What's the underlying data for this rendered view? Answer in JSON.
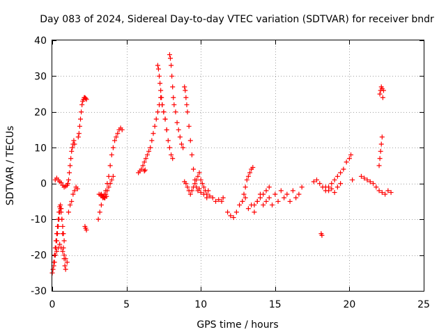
{
  "chart_data": {
    "type": "scatter",
    "title": "Day 083 of 2024, Sidereal Day-to-day VTEC variation (SDTVAR) for receiver bndr",
    "xlabel": "GPS time / hours",
    "ylabel": "SDTVAR / TECUs",
    "xlim": [
      0,
      25
    ],
    "ylim": [
      -30,
      40
    ],
    "xticks": [
      0,
      5,
      10,
      15,
      20,
      25
    ],
    "yticks": [
      -30,
      -20,
      -10,
      0,
      10,
      20,
      30,
      40
    ],
    "xtick_labels": [
      "0",
      "5",
      "10",
      "15",
      "20",
      "25"
    ],
    "ytick_labels": [
      "-30",
      "-20",
      "-10",
      "0",
      "10",
      "20",
      "30",
      "40"
    ],
    "grid": true,
    "marker": "plus",
    "color": "#ff0000",
    "series": [
      {
        "name": "SDTVAR",
        "x": [
          0.0,
          0.05,
          0.1,
          0.15,
          0.2,
          0.25,
          0.3,
          0.35,
          0.4,
          0.45,
          0.5,
          0.55,
          0.6,
          0.65,
          0.7,
          0.75,
          0.8,
          0.85,
          0.9,
          0.1,
          0.15,
          0.2,
          0.25,
          0.3,
          0.35,
          0.4,
          0.45,
          0.5,
          0.55,
          0.6,
          0.65,
          0.7,
          0.75,
          0.8,
          0.2,
          0.3,
          0.4,
          0.5,
          0.6,
          0.7,
          0.8,
          0.9,
          1.0,
          1.05,
          1.1,
          1.15,
          1.2,
          1.25,
          1.3,
          1.35,
          1.4,
          1.45,
          1.5,
          0.2,
          0.3,
          0.4,
          0.5,
          0.6,
          0.7,
          0.8,
          0.9,
          1.0,
          1.1,
          1.2,
          1.3,
          1.4,
          1.5,
          1.6,
          1.7,
          1.75,
          1.8,
          1.85,
          1.9,
          1.95,
          2.0,
          2.05,
          2.1,
          2.15,
          2.2,
          2.25,
          2.3,
          2.2,
          2.25,
          2.3,
          3.1,
          3.2,
          3.3,
          3.4,
          3.5,
          3.6,
          3.7,
          3.8,
          3.9,
          4.0,
          4.1,
          4.2,
          4.3,
          4.4,
          4.5,
          4.6,
          4.7,
          3.3,
          3.4,
          3.5,
          3.6,
          3.7,
          3.8,
          3.9,
          4.0,
          4.1,
          3.15,
          3.25,
          3.35,
          3.45,
          3.55,
          3.65,
          5.8,
          5.9,
          6.0,
          6.1,
          6.2,
          6.3,
          6.4,
          6.5,
          6.6,
          6.7,
          6.8,
          6.9,
          7.0,
          7.1,
          7.2,
          7.3,
          7.4,
          7.5,
          7.6,
          7.7,
          7.8,
          7.9,
          8.0,
          8.1,
          6.2,
          6.25,
          7.1,
          7.15,
          7.2,
          7.25,
          7.3,
          7.35,
          7.4,
          7.5,
          7.6,
          7.7,
          7.9,
          7.95,
          8.0,
          8.05,
          8.1,
          8.15,
          8.2,
          8.3,
          8.4,
          8.5,
          8.6,
          8.7,
          8.8,
          8.9,
          8.95,
          9.0,
          9.05,
          9.1,
          9.2,
          9.3,
          9.4,
          9.5,
          9.6,
          8.9,
          9.0,
          9.1,
          9.2,
          9.3,
          9.4,
          9.5,
          9.6,
          9.7,
          9.8,
          9.9,
          10.0,
          10.1,
          10.2,
          10.3,
          10.4,
          10.5,
          9.7,
          9.8,
          9.9,
          10.0,
          10.2,
          10.4,
          10.6,
          10.8,
          11.0,
          11.2,
          11.4,
          11.5,
          11.8,
          12.0,
          12.2,
          12.4,
          12.6,
          12.8,
          13.0,
          13.2,
          13.4,
          13.6,
          13.8,
          14.0,
          14.2,
          14.4,
          14.6,
          14.8,
          15.0,
          15.2,
          15.4,
          15.6,
          15.8,
          16.0,
          16.2,
          16.4,
          16.6,
          16.8,
          12.8,
          12.9,
          13.0,
          13.1,
          13.2,
          13.3,
          13.4,
          13.5,
          13.6,
          13.8,
          14.0,
          14.2,
          14.4,
          14.6,
          18.1,
          18.15,
          17.6,
          17.8,
          18.0,
          18.2,
          18.4,
          18.6,
          18.8,
          19.0,
          19.2,
          19.4,
          19.6,
          19.8,
          20.0,
          20.1,
          20.2,
          18.4,
          18.6,
          18.8,
          19.0,
          19.2,
          19.4,
          20.8,
          21.0,
          21.2,
          21.4,
          21.6,
          21.8,
          22.0,
          22.2,
          22.4,
          22.6,
          22.8,
          22.0,
          22.05,
          22.1,
          22.15,
          22.2,
          22.25,
          22.3,
          22.05,
          22.1,
          22.15,
          22.2
        ],
        "y": [
          -25,
          -24,
          -22,
          -20,
          -18,
          -16,
          -14,
          -12,
          -10,
          -8,
          -6.5,
          -6,
          -7,
          -10,
          -14,
          -18,
          -21,
          -23,
          -24,
          -23,
          -22,
          -20,
          -18,
          -16,
          -14,
          -12,
          -10,
          -8,
          -7,
          -8,
          -10,
          -12,
          -14,
          -16,
          1,
          1.5,
          1,
          0.5,
          0.2,
          -0.5,
          -1,
          -0.8,
          -0.5,
          0,
          1,
          3,
          5,
          7,
          9,
          10,
          11,
          12,
          11,
          -20,
          -19,
          -18,
          -17,
          -18,
          -19,
          -20,
          -21,
          -22,
          -8,
          -6,
          -5,
          -3,
          -2,
          -1,
          -1.5,
          13,
          14,
          16,
          18,
          20,
          22,
          23,
          23.5,
          24,
          24,
          23.8,
          23.5,
          -12,
          -12.5,
          -13,
          -10,
          -8,
          -6,
          -4,
          -3,
          -2,
          0,
          2,
          5,
          8,
          10,
          12,
          13,
          14,
          15,
          15.5,
          15,
          -3,
          -3.5,
          -4,
          -3,
          -2,
          -1,
          0,
          1,
          2,
          -3,
          -3.2,
          -3.5,
          -3.8,
          -4,
          -3.6,
          3,
          3.5,
          4,
          5,
          6,
          7,
          8,
          9,
          10,
          12,
          14,
          16,
          18,
          20,
          22,
          24,
          22,
          20,
          18,
          15,
          12,
          10,
          8,
          7,
          3.5,
          3.8,
          33,
          32,
          30,
          28,
          26,
          24,
          22,
          20,
          18,
          15,
          36,
          35,
          33,
          30,
          27,
          24,
          22,
          20,
          17,
          15,
          13,
          11,
          10,
          27,
          26,
          24,
          22,
          20,
          16,
          12,
          8,
          4,
          1,
          0.5,
          0,
          -1,
          -2,
          -3,
          -2,
          -1,
          0,
          1,
          2,
          3,
          1,
          0,
          -1,
          -2,
          -3,
          -2,
          -1,
          -2,
          -1.5,
          -2.5,
          -3,
          -4,
          -3.5,
          -4,
          -5,
          -4.5,
          -5,
          -4,
          -8,
          -9,
          -9.5,
          -8,
          -6,
          -5,
          -4,
          -7,
          -6,
          -8,
          -5,
          -3,
          -6,
          -5,
          -4,
          -6,
          -3,
          -5,
          -2,
          -4,
          -3,
          -5,
          -2,
          -4,
          -3,
          -1,
          -5,
          -3,
          -1,
          1,
          2,
          3,
          4,
          4.5,
          -6,
          -5,
          -4,
          -3,
          -2,
          -1,
          -14,
          -14.5,
          0.5,
          1,
          0,
          -1,
          -2,
          -1,
          0,
          1,
          2,
          3,
          4,
          6,
          7,
          8,
          1,
          -1,
          -2,
          -1.5,
          -2.5,
          -1,
          0,
          2,
          1.5,
          1,
          0.5,
          0,
          -1,
          -2,
          -2.5,
          -3,
          -2,
          -2.5,
          5,
          7,
          9,
          11,
          13,
          24,
          26,
          25,
          26,
          27,
          26.5
        ]
      }
    ]
  }
}
